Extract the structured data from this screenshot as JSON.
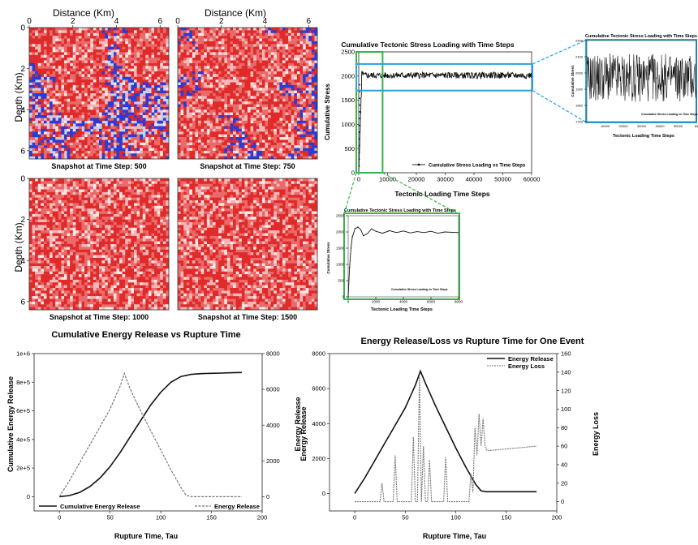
{
  "chart_data": [
    {
      "type": "heatmap",
      "panel": "snapshot-grid",
      "top_axis_label": "Distance (Km)",
      "left_axis_label": "Depth (Km)",
      "x_ticks": [
        "0",
        "2",
        "4",
        "6"
      ],
      "y_ticks": [
        "0",
        "2",
        "4",
        "6"
      ],
      "xlim": [
        0,
        6.4
      ],
      "ylim": [
        0,
        6.4
      ],
      "colors": {
        "background": "#c8d2ef",
        "stress_high": "#e02a2a",
        "stress_mid": "#f2b8b8",
        "boundary": "#2a3bd6"
      },
      "snapshots": [
        {
          "caption": "Snapshot at Time Step: 500",
          "fill_fraction": 0.45
        },
        {
          "caption": "Snapshot at Time Step: 750",
          "fill_fraction": 0.5
        },
        {
          "caption": "Snapshot at Time Step: 1000",
          "fill_fraction": 0.7
        },
        {
          "caption": "Snapshot at Time Step: 1500",
          "fill_fraction": 0.95
        }
      ]
    },
    {
      "type": "line",
      "panel": "stress-main",
      "title": "Cumulative Tectonic Stress Loading with Time Steps",
      "xlabel": "Tectonic Loading Time Steps",
      "ylabel": "Cumulative Stress",
      "xlim": [
        0,
        60000
      ],
      "ylim": [
        0,
        2500
      ],
      "x_ticks": [
        0,
        10000,
        20000,
        30000,
        40000,
        50000,
        60000
      ],
      "y_ticks": [
        0,
        500,
        1000,
        1500,
        2000,
        2500
      ],
      "legend": "Cumulative Stress Loading vs Time Steps",
      "legend_position": "bottom-right",
      "series": [
        {
          "name": "Cumulative Stress Loading vs Time Steps",
          "x": [
            0,
            500,
            1000,
            1500,
            2000,
            3000,
            5000,
            8000,
            10000,
            20000,
            30000,
            40000,
            50000,
            60000
          ],
          "y": [
            0,
            1500,
            1950,
            2150,
            2100,
            1980,
            2030,
            1990,
            2020,
            2000,
            2010,
            1990,
            2000,
            2010
          ],
          "plateau_min": 1950,
          "plateau_max": 2080
        }
      ],
      "zoom_boxes": [
        {
          "color": "#3cb24a",
          "x_range": [
            0,
            8000
          ],
          "y_range": [
            0,
            2500
          ]
        },
        {
          "color": "#27a6dc",
          "x_range": [
            0,
            60000
          ],
          "y_range": [
            1700,
            2250
          ]
        }
      ]
    },
    {
      "type": "line",
      "panel": "stress-zoom-right",
      "title": "Cumulative Tectonic Stress Loading with Time Steps",
      "xlabel": "Tectonic Loading Time Steps",
      "ylabel": "Cumulative Stress",
      "xlim": [
        0,
        60000
      ],
      "ylim": [
        1700,
        2200
      ],
      "x_ticks": [
        "10000",
        "20000",
        "30000",
        "40000",
        "50000",
        "60"
      ],
      "y_ticks": [
        1700,
        1800,
        1900,
        2000,
        2100,
        2200
      ],
      "legend": "Cumulative Stress Loading vs Time Steps",
      "series": [
        {
          "name": "Cumulative Stress Loading vs Time Steps",
          "mean": 1980,
          "min": 1820,
          "max": 2120
        }
      ]
    },
    {
      "type": "line",
      "panel": "stress-zoom-bottom",
      "title": "Cumulative Tectonic Stress Loading with Time Steps",
      "xlabel": "Tectonic Loading Time Steps",
      "ylabel": "Cumulative Stress",
      "xlim": [
        0,
        8000
      ],
      "ylim": [
        0,
        2500
      ],
      "x_ticks": [
        0,
        2000,
        4000,
        6000,
        8000
      ],
      "y_ticks": [
        0,
        500,
        1000,
        1500,
        2000,
        2500
      ],
      "legend": "Cumulative Stress Loading vs Time Steps",
      "series": [
        {
          "name": "Cumulative Stress Loading vs Time Steps",
          "x": [
            0,
            100,
            200,
            300,
            500,
            700,
            900,
            1100,
            1400,
            1700,
            2000,
            2500,
            3000,
            3500,
            4000,
            4500,
            5000,
            5500,
            6000,
            6500,
            7000,
            7500,
            8000
          ],
          "y": [
            0,
            900,
            1500,
            1850,
            2100,
            2150,
            2080,
            1880,
            1950,
            2100,
            2020,
            1960,
            2040,
            1980,
            2030,
            1970,
            2010,
            1980,
            2020,
            1960,
            2000,
            1990,
            1980
          ]
        }
      ]
    },
    {
      "type": "line",
      "panel": "energy-cumulative",
      "title": "Cumulative Energy Release vs Rupture Time",
      "xlabel": "Rupture Time, Tau",
      "ylabel": "Cumulative Energy Release",
      "y2label": "Energy Release",
      "xlim": [
        -25,
        200
      ],
      "ylim": [
        -100000.0,
        1000000.0
      ],
      "y2lim": [
        -800,
        8000
      ],
      "x_ticks": [
        0,
        50,
        100,
        150,
        200
      ],
      "y_ticks": [
        "0",
        "2e+5",
        "4e+5",
        "6e+5",
        "8e+5",
        "1e+6"
      ],
      "y_tick_values": [
        0,
        200000,
        400000,
        600000,
        800000,
        1000000
      ],
      "y2_ticks": [
        0,
        2000,
        4000,
        6000,
        8000
      ],
      "legend_position": "bottom",
      "series": [
        {
          "name": "Cumulative Energy Release",
          "axis": "y",
          "style": "solid",
          "x": [
            0,
            10,
            20,
            30,
            40,
            50,
            60,
            70,
            80,
            90,
            100,
            110,
            120,
            130,
            140,
            150,
            160,
            170,
            180
          ],
          "y": [
            0,
            8000,
            30000,
            70000,
            130000,
            210000,
            310000,
            420000,
            530000,
            640000,
            730000,
            800000,
            840000,
            855000,
            860000,
            862000,
            864000,
            866000,
            868000
          ]
        },
        {
          "name": "Energy Release",
          "axis": "y2",
          "style": "dashed",
          "x": [
            0,
            10,
            20,
            30,
            40,
            50,
            60,
            64,
            70,
            80,
            90,
            100,
            110,
            120,
            125,
            130,
            140,
            150,
            160,
            170,
            180
          ],
          "y": [
            0,
            900,
            1900,
            2900,
            3900,
            4900,
            6200,
            6900,
            6000,
            4800,
            3700,
            2600,
            1500,
            500,
            80,
            0,
            0,
            0,
            0,
            0,
            0
          ]
        }
      ]
    },
    {
      "type": "line",
      "panel": "energy-event",
      "title": "Energy Release/Loss vs Rupture Time for One Event",
      "xlabel": "Rupture Time, Tau",
      "ylabel": "Energy Release",
      "y2label": "Energy Loss",
      "xlim": [
        -25,
        200
      ],
      "ylim": [
        -1000,
        8000
      ],
      "y2lim": [
        -10,
        160
      ],
      "x_ticks": [
        0,
        50,
        100,
        150,
        200
      ],
      "y_ticks": [
        0,
        2000,
        4000,
        6000,
        8000
      ],
      "y2_ticks": [
        0,
        20,
        40,
        60,
        80,
        100,
        120,
        140,
        160
      ],
      "legend_position": "top-right",
      "series": [
        {
          "name": "Energy Release",
          "axis": "y",
          "style": "solid",
          "x": [
            0,
            10,
            20,
            30,
            40,
            50,
            60,
            65,
            70,
            80,
            90,
            100,
            110,
            120,
            125,
            130,
            140,
            150,
            160,
            170,
            180
          ],
          "y": [
            0,
            900,
            1900,
            2900,
            3900,
            4900,
            6200,
            7000,
            6300,
            5000,
            3800,
            2600,
            1500,
            500,
            150,
            100,
            100,
            100,
            100,
            100,
            100
          ]
        },
        {
          "name": "Energy Loss",
          "axis": "y2",
          "style": "dashed",
          "x": [
            0,
            25,
            27,
            29,
            31,
            38,
            40,
            42,
            44,
            46,
            56,
            58,
            60,
            62,
            64,
            66,
            68,
            70,
            72,
            74,
            76,
            78,
            80,
            88,
            90,
            92,
            113,
            115,
            117,
            119,
            121,
            123,
            125,
            127,
            129,
            131,
            180
          ],
          "y": [
            0,
            0,
            20,
            0,
            0,
            0,
            50,
            0,
            0,
            0,
            0,
            70,
            0,
            0,
            135,
            0,
            60,
            0,
            0,
            45,
            0,
            0,
            0,
            0,
            48,
            0,
            0,
            30,
            10,
            80,
            50,
            95,
            60,
            90,
            60,
            55,
            60
          ]
        }
      ]
    }
  ]
}
